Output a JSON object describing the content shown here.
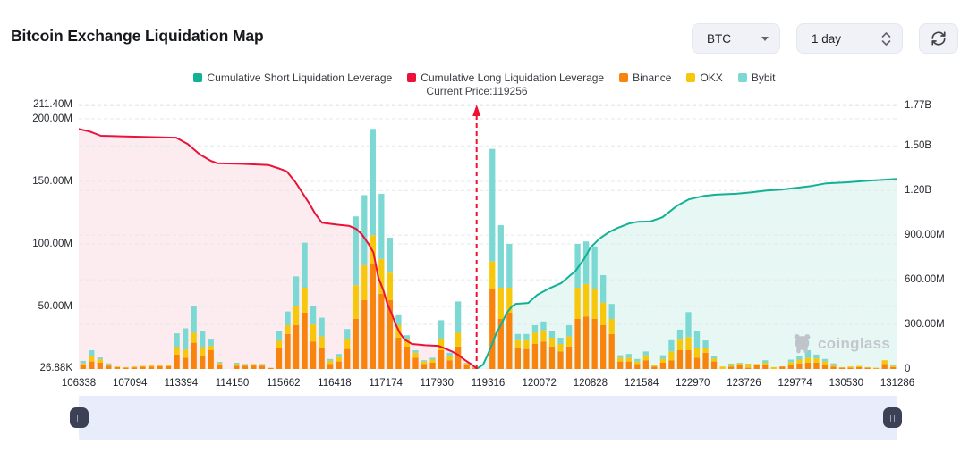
{
  "header": {
    "title": "Bitcoin Exchange Liquidation Map"
  },
  "controls": {
    "symbol": "BTC",
    "interval": "1 day"
  },
  "watermark": {
    "text": "coinglass"
  },
  "chart_data": {
    "type": "mixed-bar-line",
    "title": "Bitcoin Exchange Liquidation Map",
    "grid": "dashed",
    "legend_position": "top-center",
    "x_ticks": [
      "106338",
      "107094",
      "113394",
      "114150",
      "115662",
      "116418",
      "117174",
      "117930",
      "119316",
      "120072",
      "120828",
      "121584",
      "122970",
      "123726",
      "129774",
      "130530",
      "131286"
    ],
    "left_axis": {
      "unit": "USD",
      "max": 212.9,
      "ticks": [
        {
          "label": "211.40M",
          "value": 211.4
        },
        {
          "label": "200.00M",
          "value": 200
        },
        {
          "label": "150.00M",
          "value": 150
        },
        {
          "label": "100.00M",
          "value": 100
        },
        {
          "label": "50.00M",
          "value": 50
        },
        {
          "label": "26.88K",
          "value": 0.027
        }
      ]
    },
    "right_axis": {
      "unit": "USD",
      "max": 1790,
      "ticks": [
        {
          "label": "1.77B",
          "value": 1770
        },
        {
          "label": "1.50B",
          "value": 1500
        },
        {
          "label": "1.20B",
          "value": 1200
        },
        {
          "label": "900.00M",
          "value": 900
        },
        {
          "label": "600.00M",
          "value": 600
        },
        {
          "label": "300.00M",
          "value": 300
        },
        {
          "label": "0",
          "value": 0
        }
      ]
    },
    "current_price": {
      "label": "Current Price:119256",
      "value": 119256,
      "x_fraction": 0.486,
      "color": "#ee1130"
    },
    "series": [
      {
        "name": "Cumulative Short Liquidation Leverage",
        "type": "line",
        "axis": "right",
        "color": "#12b195",
        "fill": "rgba(17,172,146,0.10)",
        "points": [
          [
            0.486,
            0
          ],
          [
            0.494,
            30
          ],
          [
            0.499,
            90
          ],
          [
            0.505,
            168
          ],
          [
            0.51,
            240
          ],
          [
            0.516,
            300
          ],
          [
            0.523,
            378
          ],
          [
            0.529,
            420
          ],
          [
            0.534,
            438
          ],
          [
            0.549,
            444
          ],
          [
            0.56,
            498
          ],
          [
            0.574,
            540
          ],
          [
            0.589,
            576
          ],
          [
            0.607,
            660
          ],
          [
            0.617,
            738
          ],
          [
            0.625,
            816
          ],
          [
            0.636,
            876
          ],
          [
            0.647,
            918
          ],
          [
            0.658,
            948
          ],
          [
            0.672,
            978
          ],
          [
            0.683,
            990
          ],
          [
            0.698,
            992
          ],
          [
            0.713,
            1020
          ],
          [
            0.731,
            1098
          ],
          [
            0.745,
            1140
          ],
          [
            0.764,
            1164
          ],
          [
            0.778,
            1172
          ],
          [
            0.803,
            1178
          ],
          [
            0.822,
            1188
          ],
          [
            0.84,
            1200
          ],
          [
            0.858,
            1206
          ],
          [
            0.877,
            1218
          ],
          [
            0.895,
            1230
          ],
          [
            0.913,
            1248
          ],
          [
            0.937,
            1255
          ],
          [
            0.964,
            1266
          ],
          [
            1,
            1278
          ]
        ]
      },
      {
        "name": "Cumulative Long Liquidation Leverage",
        "type": "line",
        "axis": "left",
        "color": "#eb1139",
        "fill": "rgba(235,17,57,0.08)",
        "points": [
          [
            0,
            192
          ],
          [
            0.013,
            190
          ],
          [
            0.027,
            186.5
          ],
          [
            0.057,
            186
          ],
          [
            0.119,
            185
          ],
          [
            0.133,
            180
          ],
          [
            0.148,
            171.5
          ],
          [
            0.161,
            166.5
          ],
          [
            0.169,
            164.5
          ],
          [
            0.199,
            164
          ],
          [
            0.232,
            163
          ],
          [
            0.246,
            160
          ],
          [
            0.254,
            158
          ],
          [
            0.264,
            150
          ],
          [
            0.272,
            142
          ],
          [
            0.281,
            133
          ],
          [
            0.289,
            124
          ],
          [
            0.297,
            117
          ],
          [
            0.314,
            115.5
          ],
          [
            0.33,
            114.5
          ],
          [
            0.339,
            112
          ],
          [
            0.346,
            107.5
          ],
          [
            0.354,
            100
          ],
          [
            0.36,
            93
          ],
          [
            0.366,
            73
          ],
          [
            0.372,
            63
          ],
          [
            0.377,
            52
          ],
          [
            0.383,
            43
          ],
          [
            0.387,
            36
          ],
          [
            0.392,
            29
          ],
          [
            0.398,
            23.5
          ],
          [
            0.407,
            20
          ],
          [
            0.423,
            19
          ],
          [
            0.439,
            18.5
          ],
          [
            0.447,
            16.5
          ],
          [
            0.456,
            14
          ],
          [
            0.463,
            11.5
          ],
          [
            0.472,
            7
          ],
          [
            0.48,
            3.5
          ],
          [
            0.486,
            0.5
          ]
        ]
      },
      {
        "name": "Binance",
        "type": "bar",
        "axis": "left",
        "color": "#f8830d",
        "values": [
          3,
          6,
          5,
          2.5,
          1.5,
          1,
          1.3,
          1.8,
          2,
          2.2,
          2.2,
          11.5,
          9,
          21,
          10.5,
          15,
          3.5,
          0,
          2.5,
          2.5,
          2.8,
          2.5,
          0.8,
          17,
          28,
          35,
          45,
          22,
          17,
          4,
          6,
          16,
          40,
          55,
          84,
          60,
          55,
          25,
          18,
          9,
          4,
          5,
          15,
          7,
          18,
          3,
          1,
          0,
          64,
          40,
          45,
          17,
          16,
          20,
          22,
          18,
          14,
          18,
          40,
          42,
          40,
          35,
          28,
          6,
          6,
          4,
          7,
          2,
          5,
          7,
          15,
          15,
          9,
          13,
          6,
          0,
          2,
          3,
          1,
          3.5,
          3,
          0,
          2,
          3,
          4.5,
          5,
          5,
          3.5,
          2,
          1,
          1,
          1.5,
          1,
          0.5,
          4,
          1.5
        ]
      },
      {
        "name": "OKX",
        "type": "bar",
        "axis": "left",
        "color": "#f6c70b",
        "values": [
          1.5,
          4.3,
          2.7,
          1.2,
          0.5,
          0.5,
          0.7,
          0.7,
          1,
          0.8,
          0.8,
          6,
          6.5,
          8,
          7,
          3.5,
          1.2,
          0,
          1.5,
          1,
          1.2,
          1,
          0.2,
          5.5,
          7,
          15,
          20,
          13.5,
          9,
          2.5,
          3.5,
          8,
          27,
          28,
          23,
          28,
          22,
          10,
          6,
          4,
          2,
          2.5,
          9,
          3.5,
          11,
          1.5,
          0.7,
          0,
          22,
          25,
          20,
          6,
          7,
          9,
          9,
          7,
          6,
          8,
          25,
          26,
          24,
          18,
          12,
          3,
          3,
          2,
          4,
          1,
          3,
          7,
          8.5,
          10.5,
          7.5,
          3.5,
          2.5,
          2,
          1.5,
          1.5,
          3,
          0.5,
          2,
          1.5,
          0,
          2.5,
          3,
          4,
          3.5,
          2.5,
          1.5,
          0.5,
          1,
          1,
          0.5,
          0.5,
          3,
          1
        ]
      },
      {
        "name": "Bybit",
        "type": "bar",
        "axis": "left",
        "color": "#7cd8d2",
        "values": [
          2,
          4.7,
          1.5,
          0.8,
          0,
          0,
          0,
          0,
          0,
          0.5,
          0,
          11,
          17,
          21,
          13,
          5,
          1,
          0,
          1,
          0.5,
          0,
          0.5,
          0,
          7.5,
          11,
          24,
          36,
          14.5,
          15,
          1.5,
          2.5,
          8,
          55,
          56,
          85,
          52,
          28,
          8,
          3,
          2,
          1,
          1.5,
          15,
          2.5,
          25,
          0.5,
          0.3,
          0,
          90,
          50,
          35,
          5,
          5,
          6,
          7,
          5,
          5,
          9,
          35,
          34,
          34,
          22,
          12,
          2,
          3,
          2,
          3,
          0,
          3,
          9,
          8,
          20,
          14,
          6.3,
          1.5,
          0,
          0.8,
          0.5,
          0.3,
          0,
          2,
          0,
          0,
          2,
          2.5,
          6,
          3,
          2,
          1,
          0,
          0,
          0,
          0,
          0,
          0,
          0.5
        ]
      }
    ]
  }
}
